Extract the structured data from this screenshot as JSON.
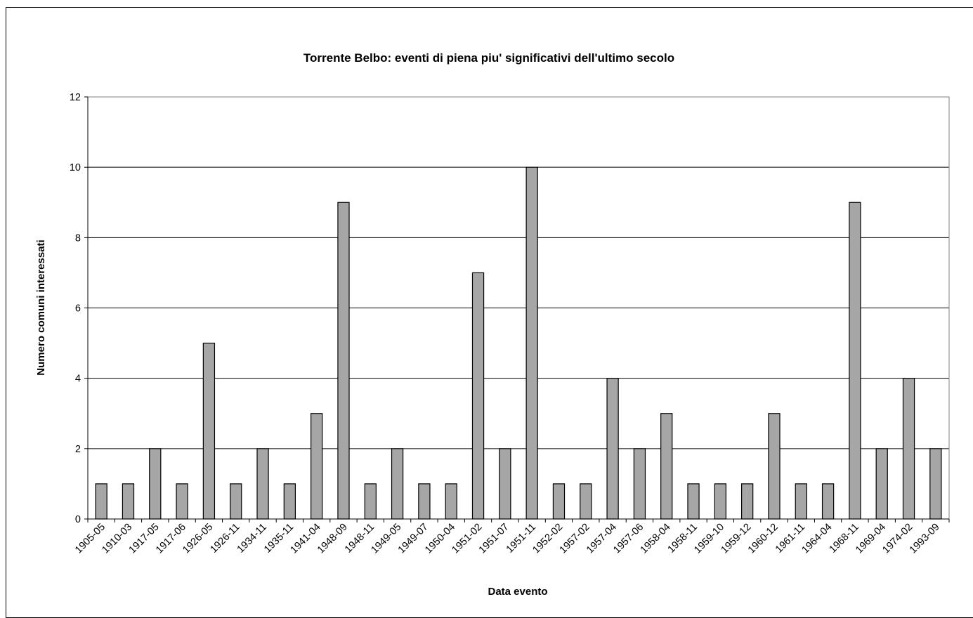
{
  "chart_data": {
    "type": "bar",
    "title": "Torrente Belbo: eventi di piena piu' significativi dell'ultimo secolo",
    "xlabel": "Data evento",
    "ylabel": "Numero comuni interessati",
    "ylim": [
      0,
      12
    ],
    "yticks": [
      0,
      2,
      4,
      6,
      8,
      10,
      12
    ],
    "grid": true,
    "legend": "none",
    "bar_color": "#a6a6a6",
    "categories": [
      "1905-05",
      "1910-03",
      "1917-05",
      "1917-06",
      "1926-05",
      "1926-11",
      "1934-11",
      "1935-11",
      "1941-04",
      "1948-09",
      "1948-11",
      "1949-05",
      "1949-07",
      "1950-04",
      "1951-02",
      "1951-07",
      "1951-11",
      "1952-02",
      "1957-02",
      "1957-04",
      "1957-06",
      "1958-04",
      "1958-11",
      "1959-10",
      "1959-12",
      "1960-12",
      "1961-11",
      "1964-04",
      "1968-11",
      "1969-04",
      "1974-02",
      "1993-09"
    ],
    "values": [
      1,
      1,
      2,
      1,
      5,
      1,
      2,
      1,
      3,
      9,
      1,
      2,
      1,
      1,
      7,
      2,
      10,
      1,
      1,
      4,
      2,
      3,
      1,
      1,
      1,
      3,
      1,
      1,
      9,
      2,
      4,
      2
    ]
  }
}
